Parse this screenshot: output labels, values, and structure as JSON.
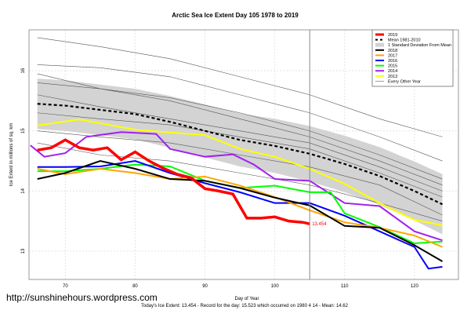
{
  "footer_url": "http://sunshinehours.wordpress.com",
  "chart_data": {
    "type": "line",
    "title": "Arctic Sea Ice Extent Day 105 1978 to 2019",
    "xlabel": "Day of Year",
    "ylabel": "Ice Extent in millions of sq. km",
    "subtitle": "Today's Ice Extent: 13.454  - Record for the day: 15.523 which occurred on 1980 4 14  - Mean: 14.62",
    "xlim": [
      64.8,
      126.3
    ],
    "ylim": [
      12.53,
      16.68
    ],
    "xticks": [
      70,
      80,
      90,
      100,
      110,
      120
    ],
    "yticks": [
      13,
      14,
      15,
      16
    ],
    "grid": true,
    "legend_position": "top-right",
    "marker_day": 105,
    "end_label": "13.454",
    "legend": [
      "2019",
      "Mean 1981-2010",
      "1 Standard Deviation From Mean",
      "2018",
      "2017",
      "2016",
      "2015",
      "2014",
      "2013",
      "Every Other Year"
    ],
    "mean": {
      "name": "Mean 1981-2010",
      "x": [
        66,
        70,
        75,
        80,
        85,
        90,
        95,
        100,
        105,
        110,
        115,
        120,
        124
      ],
      "y": [
        15.45,
        15.42,
        15.35,
        15.28,
        15.15,
        15.0,
        14.85,
        14.75,
        14.62,
        14.45,
        14.25,
        14.0,
        13.78
      ],
      "sd": [
        0.42,
        0.42,
        0.42,
        0.42,
        0.43,
        0.44,
        0.44,
        0.45,
        0.46,
        0.47,
        0.48,
        0.49,
        0.5
      ]
    },
    "series": [
      {
        "name": "2013",
        "color": "#ffff00",
        "x": [
          66,
          72,
          80,
          90,
          95,
          100,
          105,
          110,
          115,
          120,
          124
        ],
        "y": [
          15.09,
          15.19,
          15.02,
          14.93,
          14.7,
          14.57,
          14.37,
          14.12,
          13.8,
          13.52,
          13.43
        ]
      },
      {
        "name": "2014",
        "color": "#a020f0",
        "x": [
          65,
          67,
          70,
          73,
          78,
          83,
          85,
          90,
          94,
          97,
          100,
          105,
          110,
          115,
          120,
          124
        ],
        "y": [
          14.76,
          14.57,
          14.63,
          14.9,
          14.98,
          14.95,
          14.7,
          14.57,
          14.61,
          14.44,
          14.2,
          14.17,
          13.8,
          13.75,
          13.33,
          13.18
        ]
      },
      {
        "name": "2015",
        "color": "#00ff00",
        "x": [
          66,
          70,
          75,
          80,
          85,
          90,
          95,
          100,
          105,
          108,
          110,
          115,
          120,
          124
        ],
        "y": [
          14.33,
          14.33,
          14.37,
          14.44,
          14.41,
          14.17,
          14.05,
          14.09,
          13.98,
          13.98,
          13.63,
          13.4,
          13.13,
          13.16
        ]
      },
      {
        "name": "2016",
        "color": "#0000ff",
        "x": [
          66,
          70,
          75,
          80,
          85,
          90,
          95,
          100,
          105,
          110,
          115,
          120,
          122,
          124
        ],
        "y": [
          14.4,
          14.4,
          14.41,
          14.5,
          14.3,
          14.13,
          13.98,
          13.8,
          13.8,
          13.59,
          13.33,
          13.07,
          12.71,
          12.74
        ]
      },
      {
        "name": "2017",
        "color": "#ffa500",
        "x": [
          66,
          70,
          75,
          80,
          85,
          90,
          95,
          100,
          105,
          110,
          115,
          120,
          124
        ],
        "y": [
          14.37,
          14.28,
          14.37,
          14.3,
          14.2,
          14.24,
          14.09,
          13.9,
          13.68,
          13.48,
          13.39,
          13.26,
          13.07
        ]
      },
      {
        "name": "2018",
        "color": "#000000",
        "x": [
          66,
          70,
          75,
          80,
          85,
          90,
          95,
          100,
          105,
          110,
          115,
          120,
          124
        ],
        "y": [
          14.2,
          14.3,
          14.5,
          14.37,
          14.2,
          14.17,
          14.05,
          13.89,
          13.76,
          13.42,
          13.39,
          13.1,
          12.83
        ]
      },
      {
        "name": "2019",
        "color": "#ff0000",
        "x": [
          66,
          68,
          70,
          72,
          74,
          76,
          78,
          80,
          82,
          84,
          86,
          88,
          90,
          92,
          94,
          96,
          98,
          100,
          102,
          104,
          105
        ],
        "y": [
          14.68,
          14.72,
          14.85,
          14.72,
          14.68,
          14.72,
          14.52,
          14.65,
          14.5,
          14.38,
          14.28,
          14.22,
          14.04,
          14.0,
          13.95,
          13.55,
          13.55,
          13.57,
          13.5,
          13.48,
          13.454
        ]
      }
    ],
    "other_years": [
      {
        "x": [
          66,
          75,
          85,
          95,
          105,
          115,
          124
        ],
        "y": [
          16.55,
          16.4,
          16.2,
          15.9,
          15.6,
          15.2,
          14.9
        ]
      },
      {
        "x": [
          66,
          75,
          85,
          95,
          105,
          115,
          124
        ],
        "y": [
          16.1,
          16.05,
          15.9,
          15.6,
          15.3,
          14.9,
          14.5
        ]
      },
      {
        "x": [
          66,
          75,
          85,
          95,
          105,
          115,
          124
        ],
        "y": [
          15.8,
          15.7,
          15.55,
          15.3,
          15.0,
          14.6,
          14.2
        ]
      },
      {
        "x": [
          66,
          75,
          85,
          95,
          105,
          115,
          124
        ],
        "y": [
          15.6,
          15.4,
          15.2,
          15.0,
          14.8,
          14.4,
          14.0
        ]
      },
      {
        "x": [
          66,
          75,
          85,
          95,
          105,
          115,
          124
        ],
        "y": [
          15.3,
          15.2,
          15.1,
          14.9,
          14.7,
          14.3,
          13.9
        ]
      },
      {
        "x": [
          66,
          75,
          85,
          95,
          105,
          115,
          124
        ],
        "y": [
          15.0,
          14.9,
          14.8,
          14.6,
          14.4,
          14.1,
          13.6
        ]
      },
      {
        "x": [
          66,
          75,
          85,
          95,
          105,
          115,
          124
        ],
        "y": [
          14.8,
          14.6,
          14.5,
          14.3,
          14.1,
          13.8,
          13.5
        ]
      },
      {
        "x": [
          66,
          75,
          85,
          95,
          105,
          115,
          124
        ],
        "y": [
          15.95,
          15.7,
          15.5,
          15.2,
          14.9,
          14.5,
          14.1
        ]
      }
    ]
  }
}
